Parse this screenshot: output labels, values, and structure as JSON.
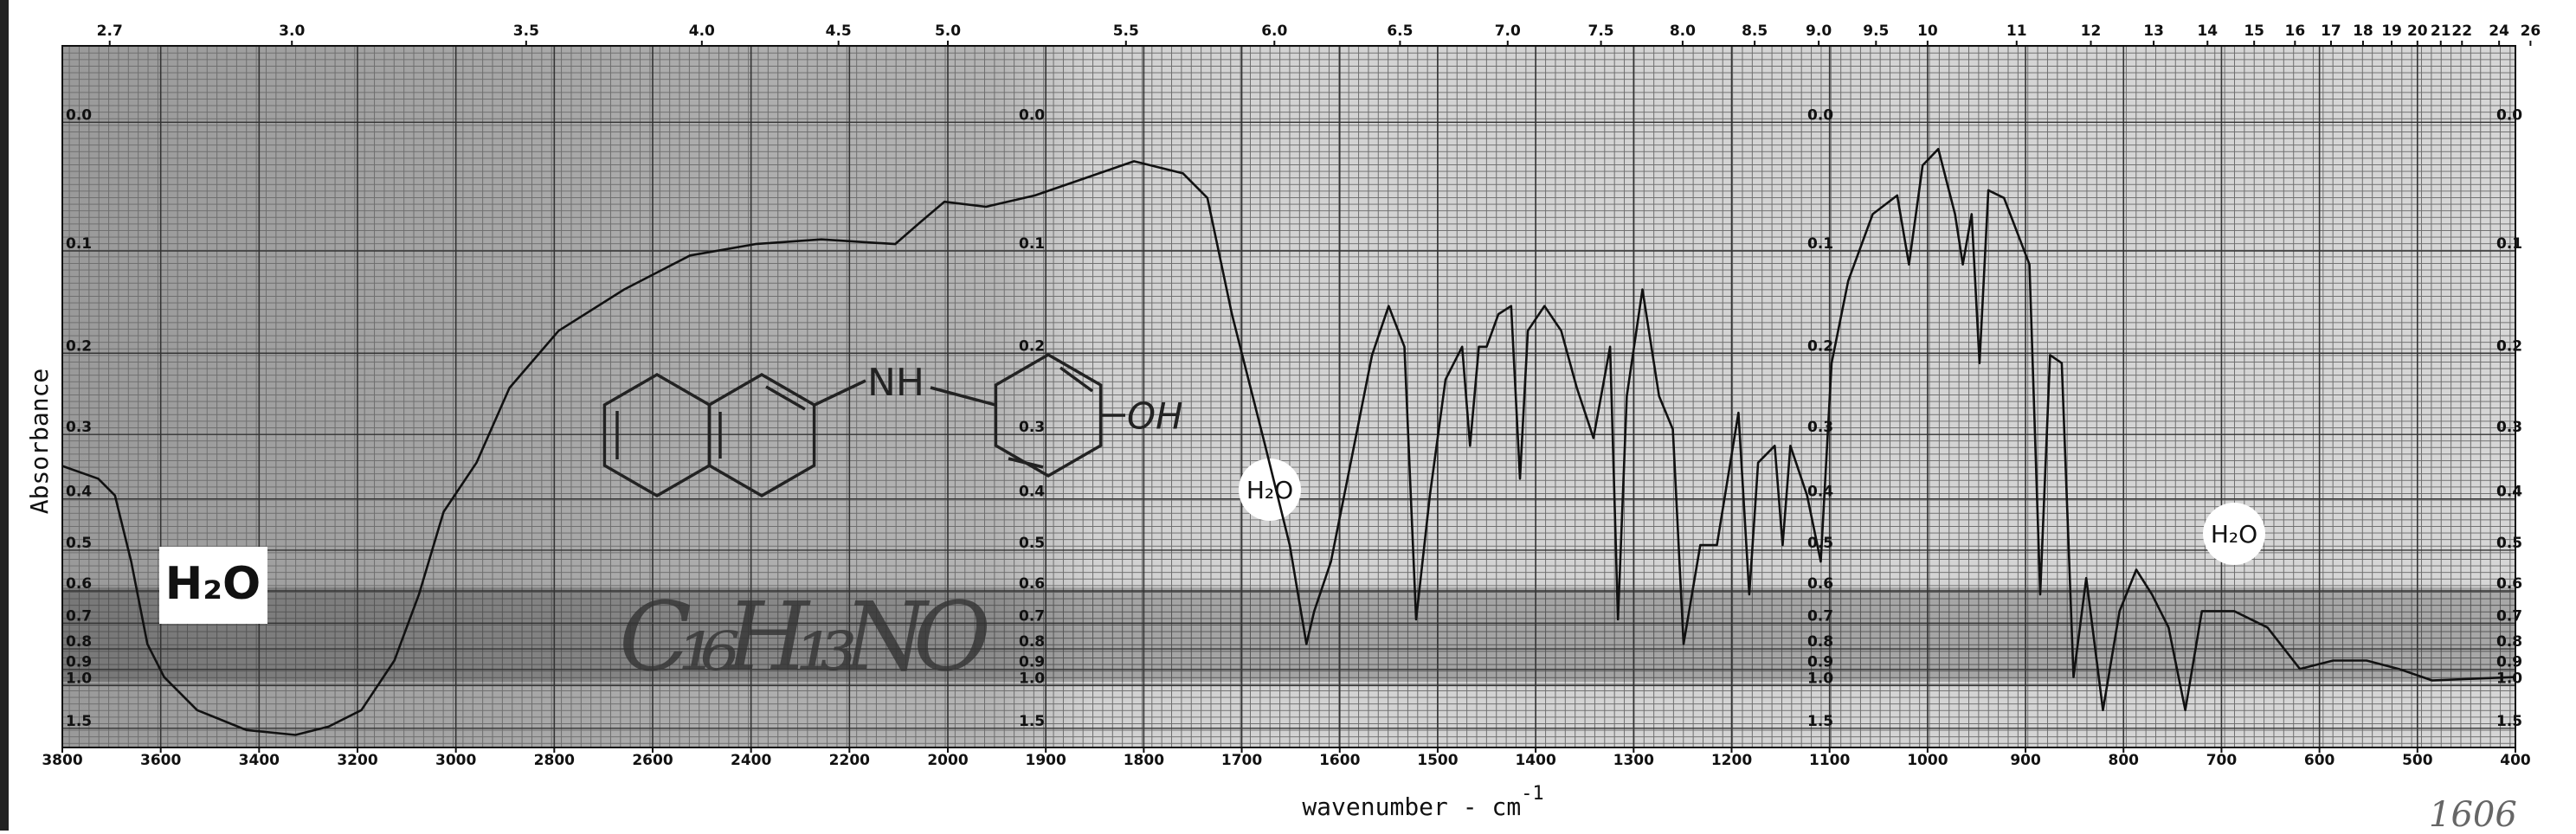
{
  "chart_data": {
    "type": "line",
    "ylabel": "Absorbance",
    "xlabel": {
      "text": "wavenumber - cm",
      "superscript": "-1"
    },
    "xlim": [
      3800,
      400
    ],
    "x_scale_change_at": 2000,
    "xticks": [
      3800,
      3600,
      3400,
      3200,
      3000,
      2800,
      2600,
      2400,
      2200,
      2000,
      1900,
      1800,
      1700,
      1600,
      1500,
      1400,
      1300,
      1200,
      1100,
      1000,
      900,
      800,
      700,
      600,
      500,
      400
    ],
    "x2ticks": [
      2.7,
      {
        "value": 3,
        "label": "3.0"
      },
      3.5,
      {
        "value": 4,
        "label": "4.0"
      },
      4.5,
      {
        "value": 5,
        "label": "5.0"
      },
      5.5,
      {
        "value": 6,
        "label": "6.0"
      },
      6.5,
      {
        "value": 7,
        "label": "7.0"
      },
      7.5,
      {
        "value": 8,
        "label": "8.0"
      },
      8.5,
      {
        "value": 9,
        "label": "9.0"
      },
      9.5,
      10,
      11,
      12,
      13,
      14,
      15,
      16,
      17,
      18,
      19,
      20,
      21,
      22,
      24,
      26
    ],
    "ylim": [
      -0.05,
      3
    ],
    "yscale": "transmittance",
    "yticks": [
      {
        "value": 0,
        "label": "0.0"
      },
      0.1,
      0.2,
      0.3,
      0.4,
      0.5,
      0.6,
      0.7,
      0.8,
      0.9,
      {
        "value": 1,
        "label": "1.0"
      },
      1.5
    ],
    "grid": true,
    "color": "#111111",
    "x": [
      3800,
      3727,
      3693,
      3660,
      3627,
      3593,
      3526,
      3426,
      3326,
      3259,
      3192,
      3125,
      3075,
      3025,
      2958,
      2891,
      2791,
      2658,
      2524,
      2391,
      2257,
      2107,
      2057,
      2007,
      1961,
      1911,
      1861,
      1810,
      1760,
      1735,
      1710,
      1676,
      1651,
      1634,
      1626,
      1609,
      1592,
      1567,
      1550,
      1534,
      1522,
      1508,
      1492,
      1475,
      1467,
      1458,
      1450,
      1438,
      1425,
      1416,
      1408,
      1391,
      1374,
      1358,
      1341,
      1324,
      1316,
      1307,
      1291,
      1274,
      1260,
      1249,
      1232,
      1215,
      1193,
      1182,
      1173,
      1156,
      1148,
      1140,
      1123,
      1109,
      1098,
      1081,
      1056,
      1031,
      1019,
      1005,
      989,
      972,
      964,
      955,
      947,
      938,
      922,
      896,
      885,
      875,
      863,
      851,
      838,
      821,
      804,
      787,
      771,
      754,
      737,
      720,
      687,
      653,
      620,
      586,
      552,
      519,
      485,
      400
    ],
    "values": [
      0.346,
      0.366,
      0.394,
      0.526,
      0.779,
      0.945,
      1.217,
      1.538,
      1.676,
      1.465,
      1.217,
      0.854,
      0.61,
      0.423,
      0.341,
      0.24,
      0.176,
      0.135,
      0.104,
      0.094,
      0.09,
      0.094,
      0.076,
      0.059,
      0.063,
      0.054,
      0.041,
      0.028,
      0.037,
      0.056,
      0.159,
      0.316,
      0.489,
      0.779,
      0.66,
      0.526,
      0.366,
      0.202,
      0.151,
      0.193,
      0.687,
      0.394,
      0.23,
      0.193,
      0.316,
      0.193,
      0.193,
      0.159,
      0.151,
      0.366,
      0.176,
      0.151,
      0.176,
      0.24,
      0.305,
      0.193,
      0.687,
      0.25,
      0.135,
      0.25,
      0.293,
      0.779,
      0.489,
      0.489,
      0.271,
      0.61,
      0.341,
      0.316,
      0.489,
      0.316,
      0.394,
      0.526,
      0.211,
      0.127,
      0.069,
      0.054,
      0.112,
      0.031,
      0.019,
      0.069,
      0.112,
      0.069,
      0.211,
      0.05,
      0.056,
      0.112,
      0.61,
      0.202,
      0.211,
      0.945,
      0.566,
      1.217,
      0.66,
      0.545,
      0.61,
      0.715,
      1.217,
      0.66,
      0.66,
      0.715,
      0.898,
      0.854,
      0.854,
      0.898,
      0.966,
      0.945
    ],
    "annotations": [
      "H₂O",
      "H₂O",
      "H₂O",
      "C₁₆H₁₃NO",
      "NH",
      "OH",
      "1606"
    ]
  }
}
